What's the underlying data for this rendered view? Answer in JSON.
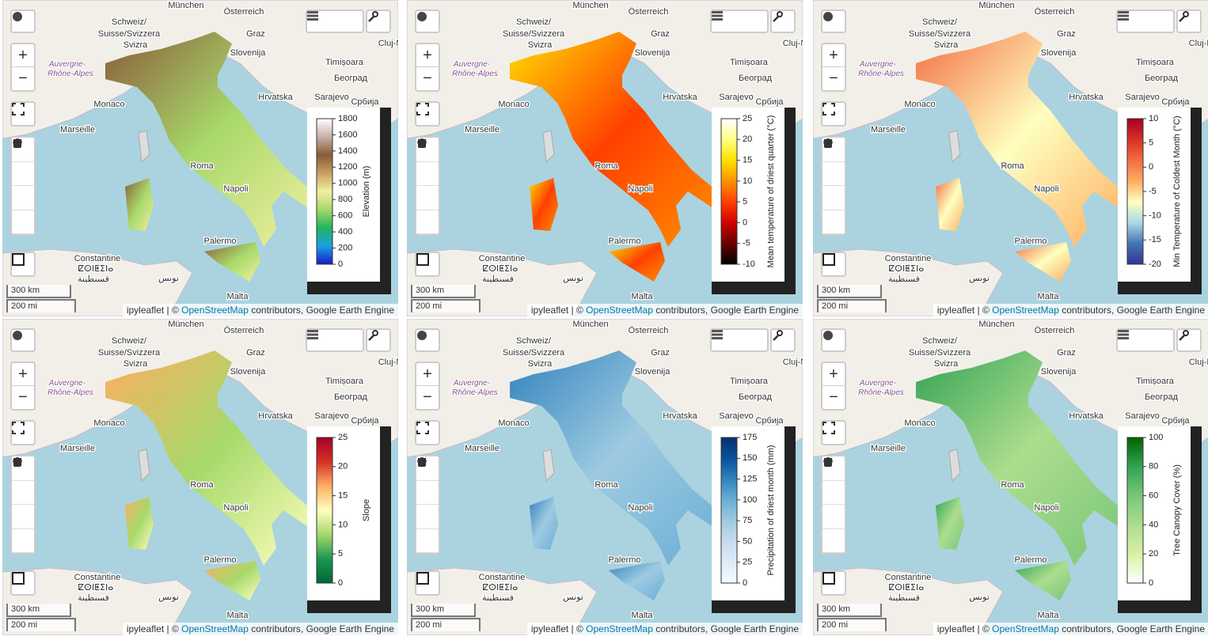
{
  "map_labels": [
    "München",
    "Österreich",
    "Schweiz/",
    "Suisse/Svizzera",
    "Svizra",
    "Graz",
    "Slovenija",
    "Cluj-N",
    "Auvergne-",
    "Rhône-Alpes",
    "Timișoara",
    "Београд",
    "Hrvatska",
    "Sarajevo",
    "Monaco",
    "Marseille",
    "Roma",
    "Napoli",
    "Palermo",
    "Constantine",
    "ⵇⵙⵏⵟⵉⵏⴰ",
    "قسنطينة",
    "تونس",
    "Malta",
    "Србија"
  ],
  "controls": {
    "zoom_in": "+",
    "zoom_out": "−"
  },
  "scale": {
    "metric": "300 km",
    "imperial": "200 mi"
  },
  "attribution": {
    "prefix": "ipyleaflet | © ",
    "link": "OpenStreetMap",
    "suffix": " contributors, Google Earth Engine"
  },
  "panels": [
    {
      "colorbar": {
        "label": "Elevation (m)",
        "ticks": [
          0,
          200,
          400,
          600,
          800,
          1000,
          1200,
          1400,
          1600,
          1800
        ],
        "colors": [
          "#1a1ac8",
          "#1aa0e6",
          "#22b45a",
          "#a8d86a",
          "#f0f0a0",
          "#c8a060",
          "#8a5a3a",
          "#c8b0a8",
          "#ffffff"
        ]
      }
    },
    {
      "colorbar": {
        "label": "Mean temperature of driest quarter (°C)",
        "ticks": [
          -10,
          -5,
          0,
          5,
          10,
          15,
          20,
          25
        ],
        "colors": [
          "#000000",
          "#6a0000",
          "#d00000",
          "#ff4000",
          "#ff9000",
          "#ffe000",
          "#ffff80",
          "#ffffff"
        ]
      }
    },
    {
      "colorbar": {
        "label": "Min Temperature of Coldest Month (°C)",
        "ticks": [
          -20,
          -15,
          -10,
          -5,
          0,
          5,
          10
        ],
        "colors": [
          "#313695",
          "#4575b4",
          "#abd9e9",
          "#ffffbf",
          "#fdae61",
          "#f46d43",
          "#d73027",
          "#a50026"
        ]
      }
    },
    {
      "colorbar": {
        "label": "Slope",
        "ticks": [
          0,
          5,
          10,
          15,
          20,
          25
        ],
        "colors": [
          "#006837",
          "#1a9850",
          "#a6d96a",
          "#ffffbf",
          "#fdae61",
          "#d73027",
          "#a50026"
        ]
      }
    },
    {
      "colorbar": {
        "label": "Precipitation of driest month (mm)",
        "ticks": [
          0,
          25,
          50,
          75,
          100,
          125,
          150,
          175
        ],
        "colors": [
          "#f7fbff",
          "#deebf7",
          "#c6dbef",
          "#9ecae1",
          "#6baed6",
          "#3182bd",
          "#08519c",
          "#08306b"
        ]
      }
    },
    {
      "colorbar": {
        "label": "Tree Canopy Cover (%)",
        "ticks": [
          0,
          20,
          40,
          60,
          80,
          100
        ],
        "colors": [
          "#ffffff",
          "#d9f0a3",
          "#addd8e",
          "#78c679",
          "#31a354",
          "#006400"
        ]
      }
    }
  ]
}
